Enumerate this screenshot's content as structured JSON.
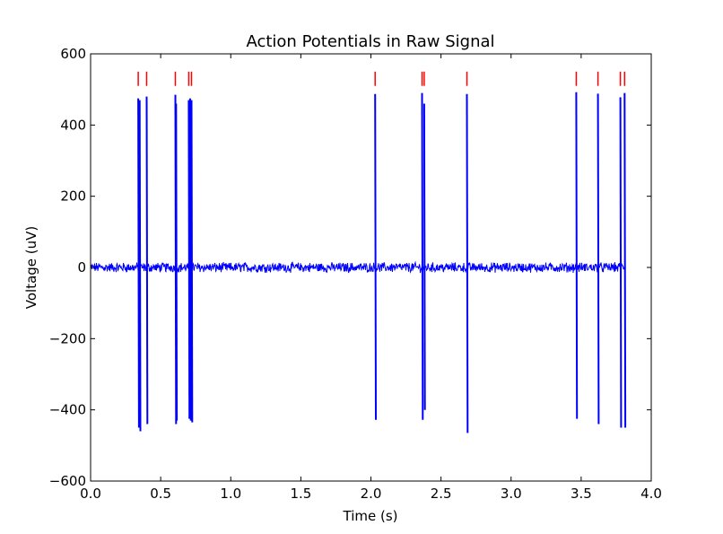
{
  "chart_data": {
    "type": "line",
    "title": "Action Potentials in Raw Signal",
    "xlabel": "Time (s)",
    "ylabel": "Voltage (uV)",
    "xlim": [
      0.0,
      4.0
    ],
    "ylim": [
      -600,
      600
    ],
    "x_ticks": [
      0.0,
      0.5,
      1.0,
      1.5,
      2.0,
      2.5,
      3.0,
      3.5,
      4.0
    ],
    "x_tick_labels": [
      "0.0",
      "0.5",
      "1.0",
      "1.5",
      "2.0",
      "2.5",
      "3.0",
      "3.5",
      "4.0"
    ],
    "y_ticks": [
      600,
      400,
      200,
      0,
      -200,
      -400,
      -600
    ],
    "y_tick_labels": [
      "600",
      "400",
      "200",
      "0",
      "−200",
      "−400",
      "−600"
    ],
    "grid": false,
    "signal": {
      "color": "#0000ff",
      "duration": 3.82,
      "baseline_noise_uv": 12,
      "spikes": [
        {
          "t": 0.34,
          "peak": 475,
          "trough": -450
        },
        {
          "t": 0.35,
          "peak": 470,
          "trough": -460
        },
        {
          "t": 0.4,
          "peak": 480,
          "trough": -440
        },
        {
          "t": 0.605,
          "peak": 485,
          "trough": -440
        },
        {
          "t": 0.61,
          "peak": 460,
          "trough": -430
        },
        {
          "t": 0.7,
          "peak": 470,
          "trough": -425
        },
        {
          "t": 0.71,
          "peak": 475,
          "trough": -430
        },
        {
          "t": 0.72,
          "peak": 470,
          "trough": -435
        },
        {
          "t": 2.03,
          "peak": 487,
          "trough": -428
        },
        {
          "t": 2.365,
          "peak": 490,
          "trough": -428
        },
        {
          "t": 2.38,
          "peak": 460,
          "trough": -400
        },
        {
          "t": 2.685,
          "peak": 487,
          "trough": -465
        },
        {
          "t": 3.465,
          "peak": 492,
          "trough": -425
        },
        {
          "t": 3.62,
          "peak": 488,
          "trough": -440
        },
        {
          "t": 3.78,
          "peak": 478,
          "trough": -450
        },
        {
          "t": 3.81,
          "peak": 490,
          "trough": -450
        }
      ]
    },
    "markers": {
      "color": "#ff0000",
      "y_range": [
        510,
        550
      ],
      "x": [
        0.34,
        0.4,
        0.605,
        0.7,
        0.72,
        2.03,
        2.365,
        2.38,
        2.685,
        3.465,
        3.62,
        3.78,
        3.81
      ]
    }
  }
}
